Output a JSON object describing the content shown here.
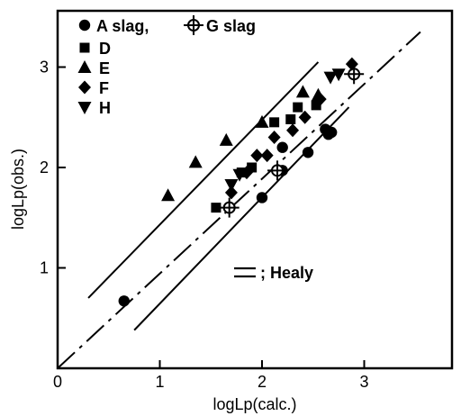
{
  "chart_data": {
    "type": "scatter",
    "xlabel": "logLp(calc.)",
    "ylabel": "logLp(obs.)",
    "xlim": [
      0,
      3.9
    ],
    "ylim": [
      0,
      3.6
    ],
    "xticks": [
      "0",
      "1",
      "2",
      "3"
    ],
    "yticks": [
      "1",
      "2",
      "3"
    ],
    "series": [
      {
        "name": "A slag",
        "marker": "circle",
        "points": [
          [
            0.65,
            0.67
          ],
          [
            2.0,
            1.7
          ],
          [
            2.2,
            1.97
          ],
          [
            2.2,
            2.2
          ],
          [
            2.45,
            2.15
          ],
          [
            2.62,
            2.38
          ],
          [
            2.65,
            2.33
          ],
          [
            2.68,
            2.35
          ]
        ]
      },
      {
        "name": "G slag",
        "marker": "circle-cross",
        "points": [
          [
            1.68,
            1.6
          ],
          [
            2.15,
            1.97
          ],
          [
            2.9,
            2.93
          ]
        ]
      },
      {
        "name": "D",
        "marker": "square",
        "points": [
          [
            1.55,
            1.6
          ],
          [
            1.8,
            1.95
          ],
          [
            1.9,
            2.0
          ],
          [
            2.12,
            2.45
          ],
          [
            2.28,
            2.48
          ],
          [
            2.35,
            2.6
          ],
          [
            2.53,
            2.62
          ]
        ]
      },
      {
        "name": "E",
        "marker": "triangle-up",
        "points": [
          [
            1.08,
            1.72
          ],
          [
            1.35,
            2.05
          ],
          [
            1.65,
            2.27
          ],
          [
            2.0,
            2.45
          ],
          [
            2.4,
            2.75
          ],
          [
            2.55,
            2.72
          ]
        ]
      },
      {
        "name": "F",
        "marker": "diamond",
        "points": [
          [
            1.7,
            1.75
          ],
          [
            1.85,
            1.95
          ],
          [
            1.95,
            2.12
          ],
          [
            2.05,
            2.12
          ],
          [
            2.12,
            2.3
          ],
          [
            2.3,
            2.37
          ],
          [
            2.42,
            2.5
          ],
          [
            2.57,
            2.68
          ],
          [
            2.88,
            3.03
          ]
        ]
      },
      {
        "name": "H",
        "marker": "triangle-down",
        "points": [
          [
            1.7,
            1.83
          ],
          [
            1.78,
            1.93
          ],
          [
            2.67,
            2.9
          ],
          [
            2.75,
            2.93
          ]
        ]
      }
    ],
    "lines": [
      {
        "style": "solid",
        "x": [
          0.3,
          2.55
        ],
        "y": [
          0.7,
          3.05
        ]
      },
      {
        "style": "dashdot",
        "x": [
          0.0,
          3.55
        ],
        "y": [
          0.0,
          3.35
        ]
      },
      {
        "style": "solid",
        "x": [
          0.75,
          2.85
        ],
        "y": [
          0.38,
          2.6
        ]
      }
    ],
    "legend": [
      {
        "text": "A  slag,",
        "marker": "circle"
      },
      {
        "text": "G  slag",
        "marker": "circle-cross"
      },
      {
        "text": "D",
        "marker": "square"
      },
      {
        "text": "E",
        "marker": "triangle-up"
      },
      {
        "text": "F",
        "marker": "diamond"
      },
      {
        "text": "H",
        "marker": "triangle-down"
      }
    ],
    "annotation": "; Healy",
    "grid": false
  }
}
